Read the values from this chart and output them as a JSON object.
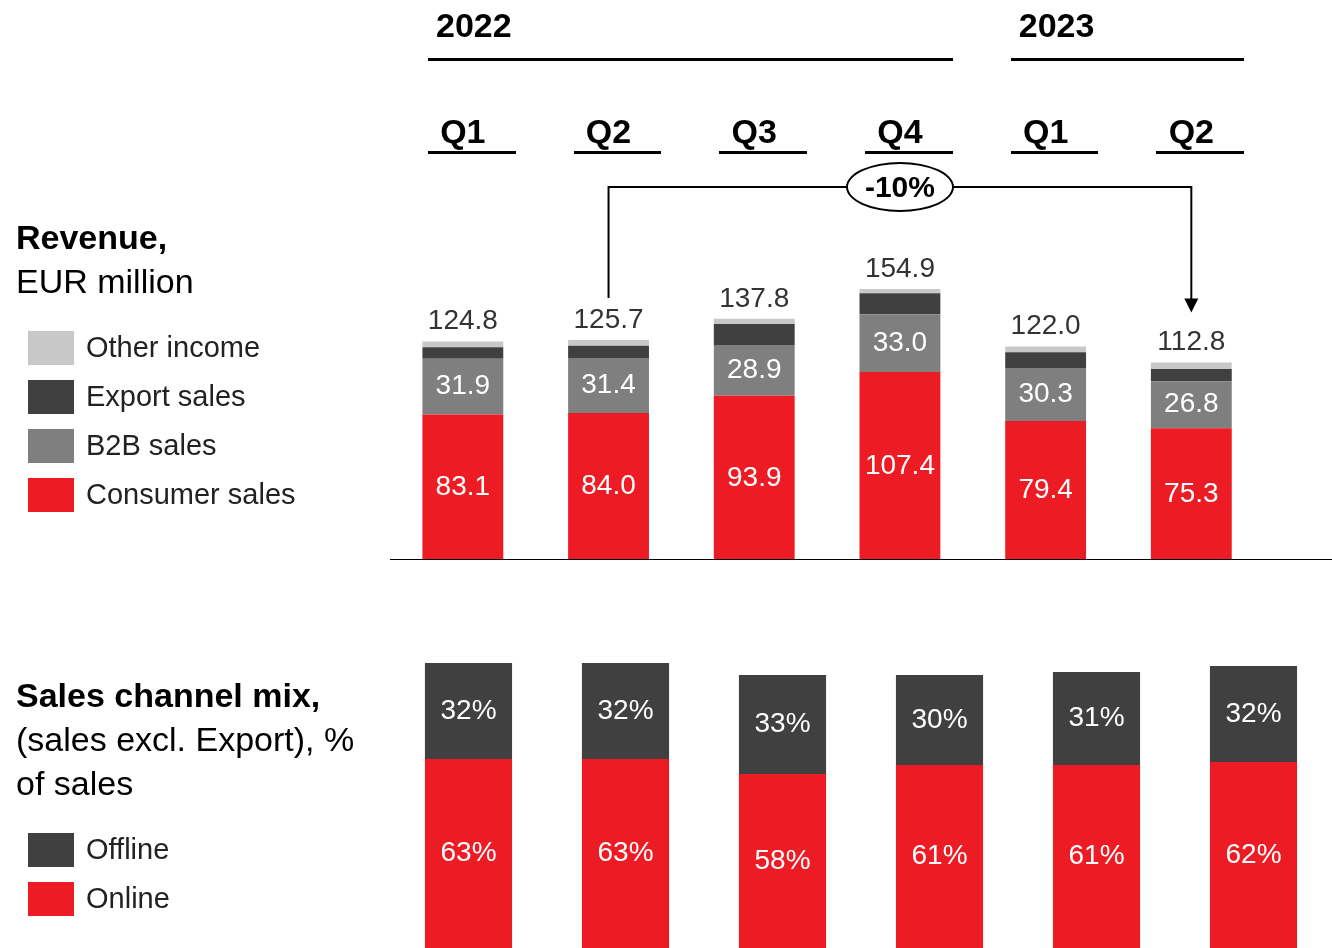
{
  "chart_data": [
    {
      "type": "bar",
      "ylabel": "Revenue, EUR million",
      "categories": [
        "Q1",
        "Q2",
        "Q3",
        "Q4",
        "Q1",
        "Q2"
      ],
      "stacked": true,
      "legend": "left",
      "tick_labels": "x",
      "annotations": [
        "2022",
        "2023",
        "-10%"
      ],
      "totals": [
        "124.8",
        "125.7",
        "137.8",
        "154.9",
        "122.0",
        "112.8"
      ],
      "series": [
        {
          "name": "Consumer sales",
          "color": "#ed1c24",
          "values": [
            83.1,
            84.0,
            93.9,
            107.4,
            79.4,
            75.3
          ],
          "value_labels": [
            "83.1",
            "84.0",
            "93.9",
            "107.4",
            "79.4",
            "75.3"
          ]
        },
        {
          "name": "B2B sales",
          "color": "#7f7f7f",
          "values": [
            31.9,
            31.4,
            28.9,
            33.0,
            30.3,
            26.8
          ],
          "value_labels": [
            "31.9",
            "31.4",
            "28.9",
            "33.0",
            "30.3",
            "26.8"
          ]
        },
        {
          "name": "Export sales",
          "color": "#404040",
          "values": [
            6.6,
            7.0,
            12.1,
            12.1,
            9.0,
            7.1
          ]
        },
        {
          "name": "Other income",
          "color": "#c8c8c8",
          "values": [
            3.2,
            3.3,
            2.9,
            2.4,
            3.3,
            3.6
          ]
        }
      ]
    },
    {
      "type": "bar",
      "ylabel": "Sales channel mix, (sales excl. Export), % of sales",
      "categories": [
        null,
        null,
        null,
        null,
        null,
        null
      ],
      "stacked": true,
      "legend": "left",
      "tick_labels": false,
      "series": [
        {
          "name": "Online",
          "color": "#ed1c24",
          "values": [
            63,
            63,
            58,
            61,
            61,
            62
          ],
          "value_labels": [
            "63%",
            "63%",
            "58%",
            "61%",
            "61%",
            "62%"
          ]
        },
        {
          "name": "Offline",
          "color": "#404040",
          "values": [
            32,
            32,
            33,
            30,
            31,
            32
          ],
          "value_labels": [
            "32%",
            "32%",
            "33%",
            "30%",
            "31%",
            "32%"
          ]
        }
      ]
    }
  ]
}
